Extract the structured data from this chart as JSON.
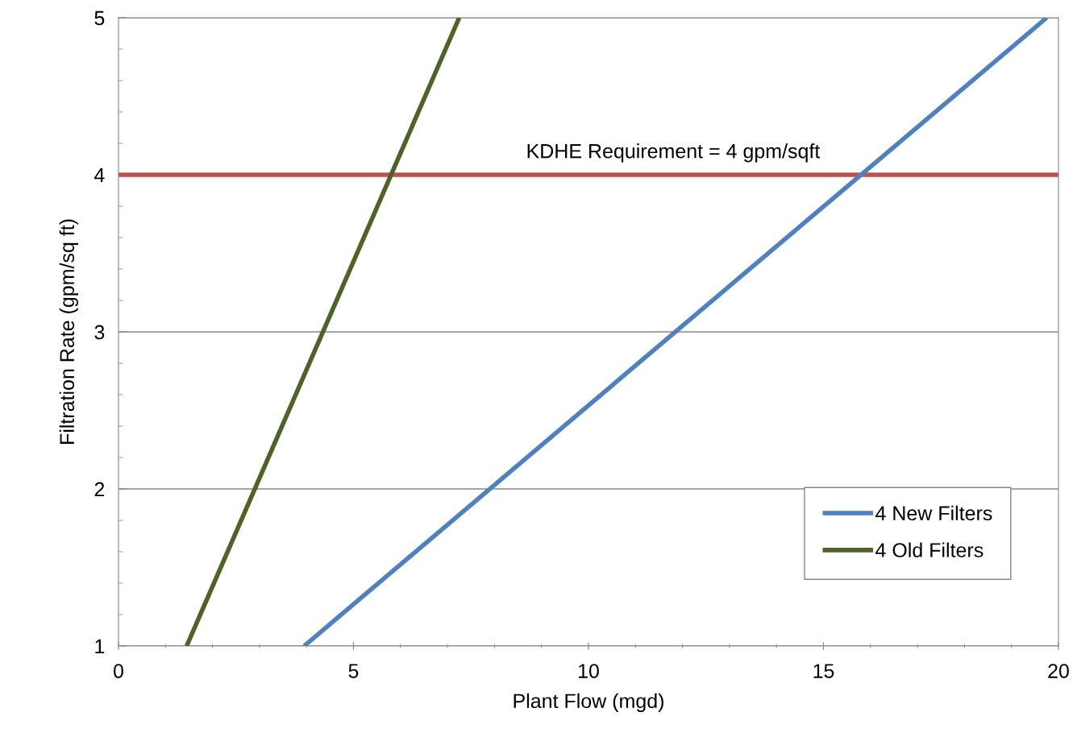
{
  "chart_data": {
    "type": "line",
    "xlabel": "Plant Flow (mgd)",
    "ylabel": "Filtration Rate (gpm/sq ft)",
    "series": [
      {
        "name": "4 New Filters",
        "color": "#4f81bd",
        "x": [
          3.95,
          19.75
        ],
        "values": [
          1,
          5
        ]
      },
      {
        "name": "4 Old Filters",
        "color": "#4f6228",
        "x": [
          1.45,
          7.25
        ],
        "values": [
          1,
          5
        ]
      }
    ],
    "ref_lines": [
      {
        "axis": "y",
        "value": 4,
        "label": "KDHE Requirement = 4 gpm/sqft",
        "color": "#c0504d"
      }
    ],
    "xlim": [
      0,
      20
    ],
    "xticks": [
      0,
      5,
      10,
      15,
      20
    ],
    "ylim": [
      1,
      5
    ],
    "yticks": [
      1,
      2,
      3,
      4,
      5
    ],
    "grid": "y",
    "legend": "bottom right",
    "marker": "none",
    "line_style": "solid"
  }
}
